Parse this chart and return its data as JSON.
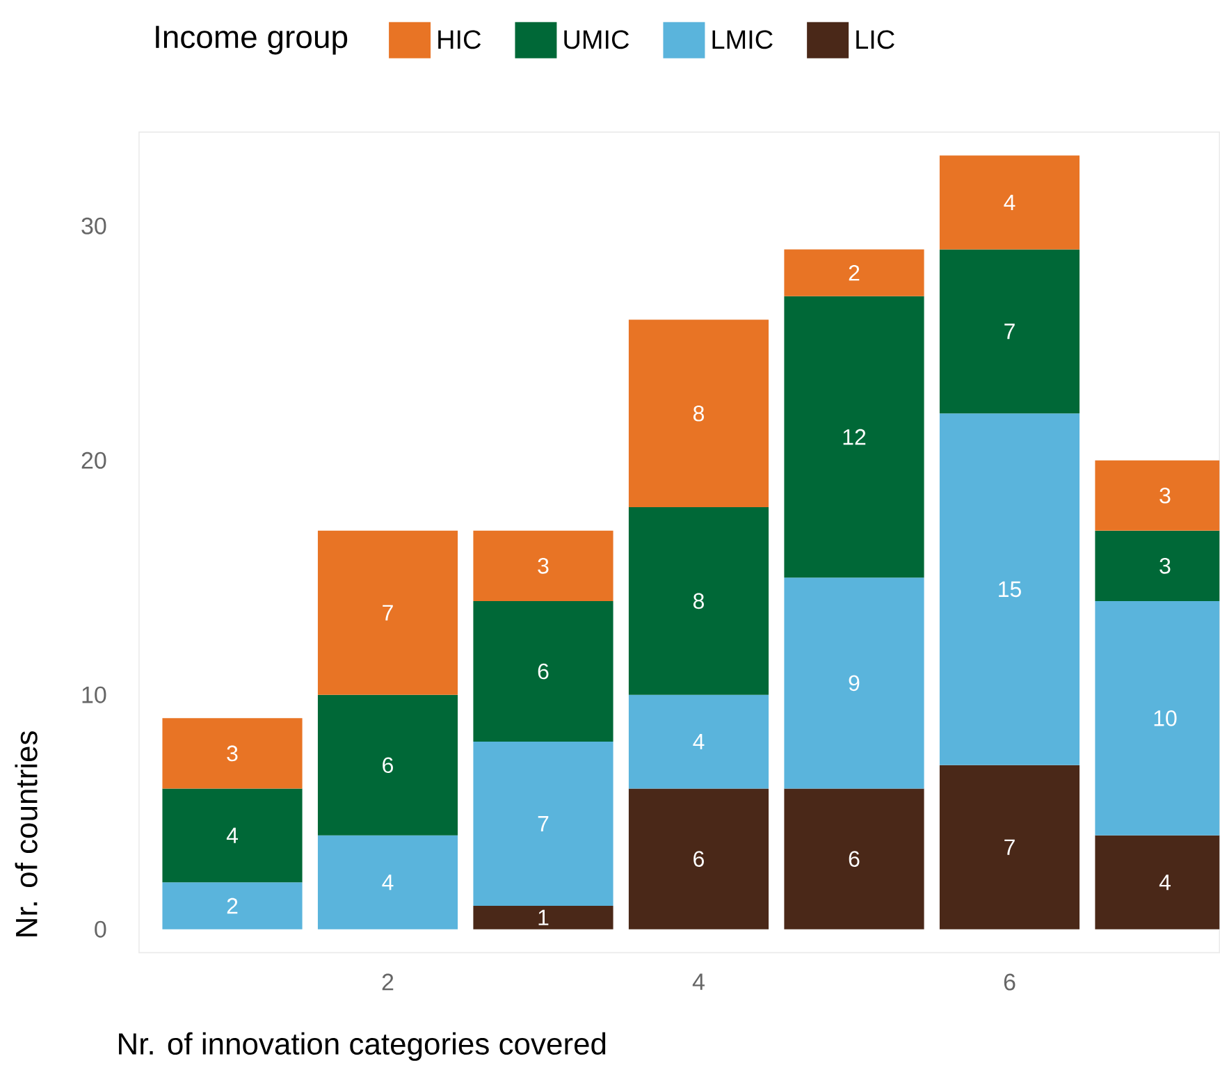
{
  "chart_data": {
    "type": "bar",
    "stacked": true,
    "xlabel": "Nr. of innovation categories covered",
    "ylabel": "Nr. of countries",
    "legend_title": "Income group",
    "legend": "top",
    "x": [
      1,
      2,
      3,
      4,
      5,
      6,
      7
    ],
    "xlim": [
      0.4,
      7.35
    ],
    "xticks": [
      2,
      4,
      6
    ],
    "ylim": [
      -1,
      34
    ],
    "yticks": [
      0,
      10,
      20,
      30
    ],
    "data_labels": true,
    "series": [
      {
        "name": "LIC",
        "color": "#4a2818",
        "values": [
          null,
          null,
          1,
          6,
          6,
          7,
          4
        ]
      },
      {
        "name": "LMIC",
        "color": "#5ab4dc",
        "values": [
          2,
          4,
          7,
          4,
          9,
          15,
          10
        ]
      },
      {
        "name": "UMIC",
        "color": "#006837",
        "values": [
          4,
          6,
          6,
          8,
          12,
          7,
          3
        ]
      },
      {
        "name": "HIC",
        "color": "#e87425",
        "values": [
          3,
          7,
          3,
          8,
          2,
          4,
          3
        ]
      }
    ]
  }
}
